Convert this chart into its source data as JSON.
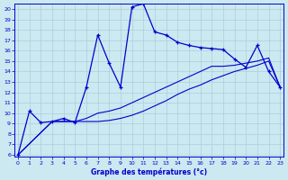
{
  "title": "",
  "xlabel": "Graphe des températures (°c)",
  "ylabel": "",
  "bg_color": "#cce8f0",
  "grid_color": "#a8d0dc",
  "line_color": "#0000cc",
  "xlim": [
    0,
    23
  ],
  "ylim": [
    6,
    20
  ],
  "xticks": [
    0,
    1,
    2,
    3,
    4,
    5,
    6,
    7,
    8,
    9,
    10,
    11,
    12,
    13,
    14,
    15,
    16,
    17,
    18,
    19,
    20,
    21,
    22,
    23
  ],
  "yticks": [
    6,
    7,
    8,
    9,
    10,
    11,
    12,
    13,
    14,
    15,
    16,
    17,
    18,
    19,
    20
  ],
  "main_line": {
    "x": [
      0,
      1,
      2,
      3,
      4,
      5,
      6,
      7,
      8,
      9,
      10,
      11,
      12,
      13,
      14,
      15,
      16,
      17,
      18,
      19,
      20,
      21,
      22,
      23
    ],
    "y": [
      6,
      10.2,
      9.1,
      9.2,
      9.5,
      9.1,
      12.5,
      17.5,
      14.8,
      12.5,
      20.2,
      20.5,
      17.8,
      17.5,
      16.8,
      16.5,
      16.3,
      16.2,
      16.1,
      15.2,
      14.4,
      16.5,
      14.0,
      12.5
    ]
  },
  "line2": {
    "x": [
      0,
      3,
      5,
      6,
      7,
      8,
      9,
      10,
      11,
      12,
      13,
      14,
      15,
      16,
      17,
      18,
      19,
      20,
      21,
      22,
      23
    ],
    "y": [
      6.0,
      9.2,
      9.2,
      9.2,
      9.2,
      9.3,
      9.5,
      9.8,
      10.2,
      10.7,
      11.2,
      11.8,
      12.3,
      12.7,
      13.2,
      13.6,
      14.0,
      14.3,
      14.6,
      15.0,
      12.5
    ]
  },
  "line3": {
    "x": [
      0,
      3,
      5,
      6,
      7,
      8,
      9,
      10,
      11,
      12,
      13,
      14,
      15,
      16,
      17,
      18,
      19,
      20,
      21,
      22,
      23
    ],
    "y": [
      6.0,
      9.2,
      9.2,
      9.5,
      10.0,
      10.2,
      10.5,
      11.0,
      11.5,
      12.0,
      12.5,
      13.0,
      13.5,
      14.0,
      14.5,
      14.5,
      14.6,
      14.8,
      15.0,
      15.3,
      12.5
    ]
  }
}
